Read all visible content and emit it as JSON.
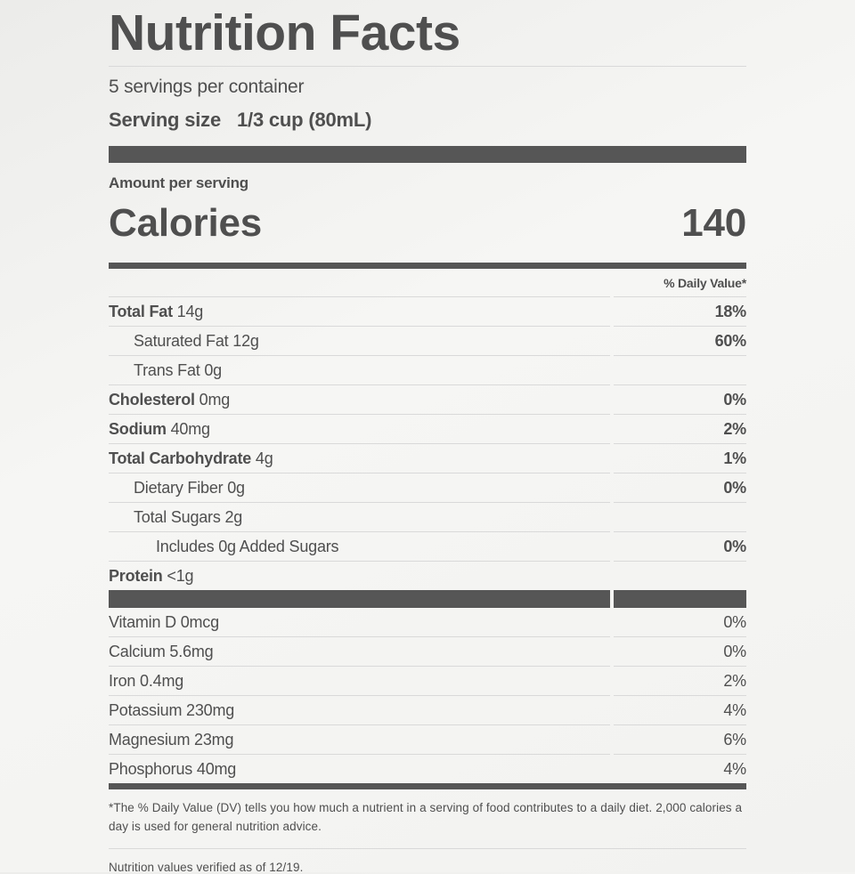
{
  "label": {
    "title": "Nutrition Facts",
    "servings_per_container": "5 servings per container",
    "serving_size_label": "Serving size",
    "serving_size_value": "1/3 cup (80mL)",
    "amount_per_serving": "Amount per serving",
    "calories_label": "Calories",
    "calories_value": "140",
    "daily_value_header": "% Daily Value*",
    "footnote": "*The % Daily Value (DV) tells you how much a nutrient in a serving of food contributes to a daily diet. 2,000 calories a day is used for general nutrition advice.",
    "verified_note": "Nutrition values verified as of 12/19."
  },
  "nutrients": [
    {
      "name": "Total Fat",
      "amount": "14g",
      "percent": "18%",
      "bold": true,
      "indent": 0
    },
    {
      "name": "Saturated Fat",
      "amount": "12g",
      "percent": "60%",
      "bold": false,
      "indent": 1
    },
    {
      "name": "Trans Fat",
      "amount": "0g",
      "percent": "",
      "bold": false,
      "indent": 1
    },
    {
      "name": "Cholesterol",
      "amount": "0mg",
      "percent": "0%",
      "bold": true,
      "indent": 0
    },
    {
      "name": "Sodium",
      "amount": "40mg",
      "percent": "2%",
      "bold": true,
      "indent": 0
    },
    {
      "name": "Total Carbohydrate",
      "amount": "4g",
      "percent": "1%",
      "bold": true,
      "indent": 0
    },
    {
      "name": "Dietary Fiber",
      "amount": "0g",
      "percent": "0%",
      "bold": false,
      "indent": 1
    },
    {
      "name": "Total Sugars",
      "amount": "2g",
      "percent": "",
      "bold": false,
      "indent": 1
    },
    {
      "name": "Includes 0g Added Sugars",
      "amount": "",
      "percent": "0%",
      "bold": false,
      "indent": 2
    },
    {
      "name": "Protein",
      "amount": "<1g",
      "percent": "",
      "bold": true,
      "indent": 0,
      "last": true
    }
  ],
  "vitamins": [
    {
      "name": "Vitamin D",
      "amount": "0mcg",
      "percent": "0%"
    },
    {
      "name": "Calcium",
      "amount": "5.6mg",
      "percent": "0%"
    },
    {
      "name": "Iron",
      "amount": "0.4mg",
      "percent": "2%"
    },
    {
      "name": "Potassium",
      "amount": "230mg",
      "percent": "4%"
    },
    {
      "name": "Magnesium",
      "amount": "23mg",
      "percent": "6%"
    },
    {
      "name": "Phosphorus",
      "amount": "40mg",
      "percent": "4%",
      "last": true
    }
  ],
  "colors": {
    "text": "#4f4f4f",
    "bar": "#565656",
    "hairline": "#d9d9d9",
    "background": "#f2f2f0"
  }
}
